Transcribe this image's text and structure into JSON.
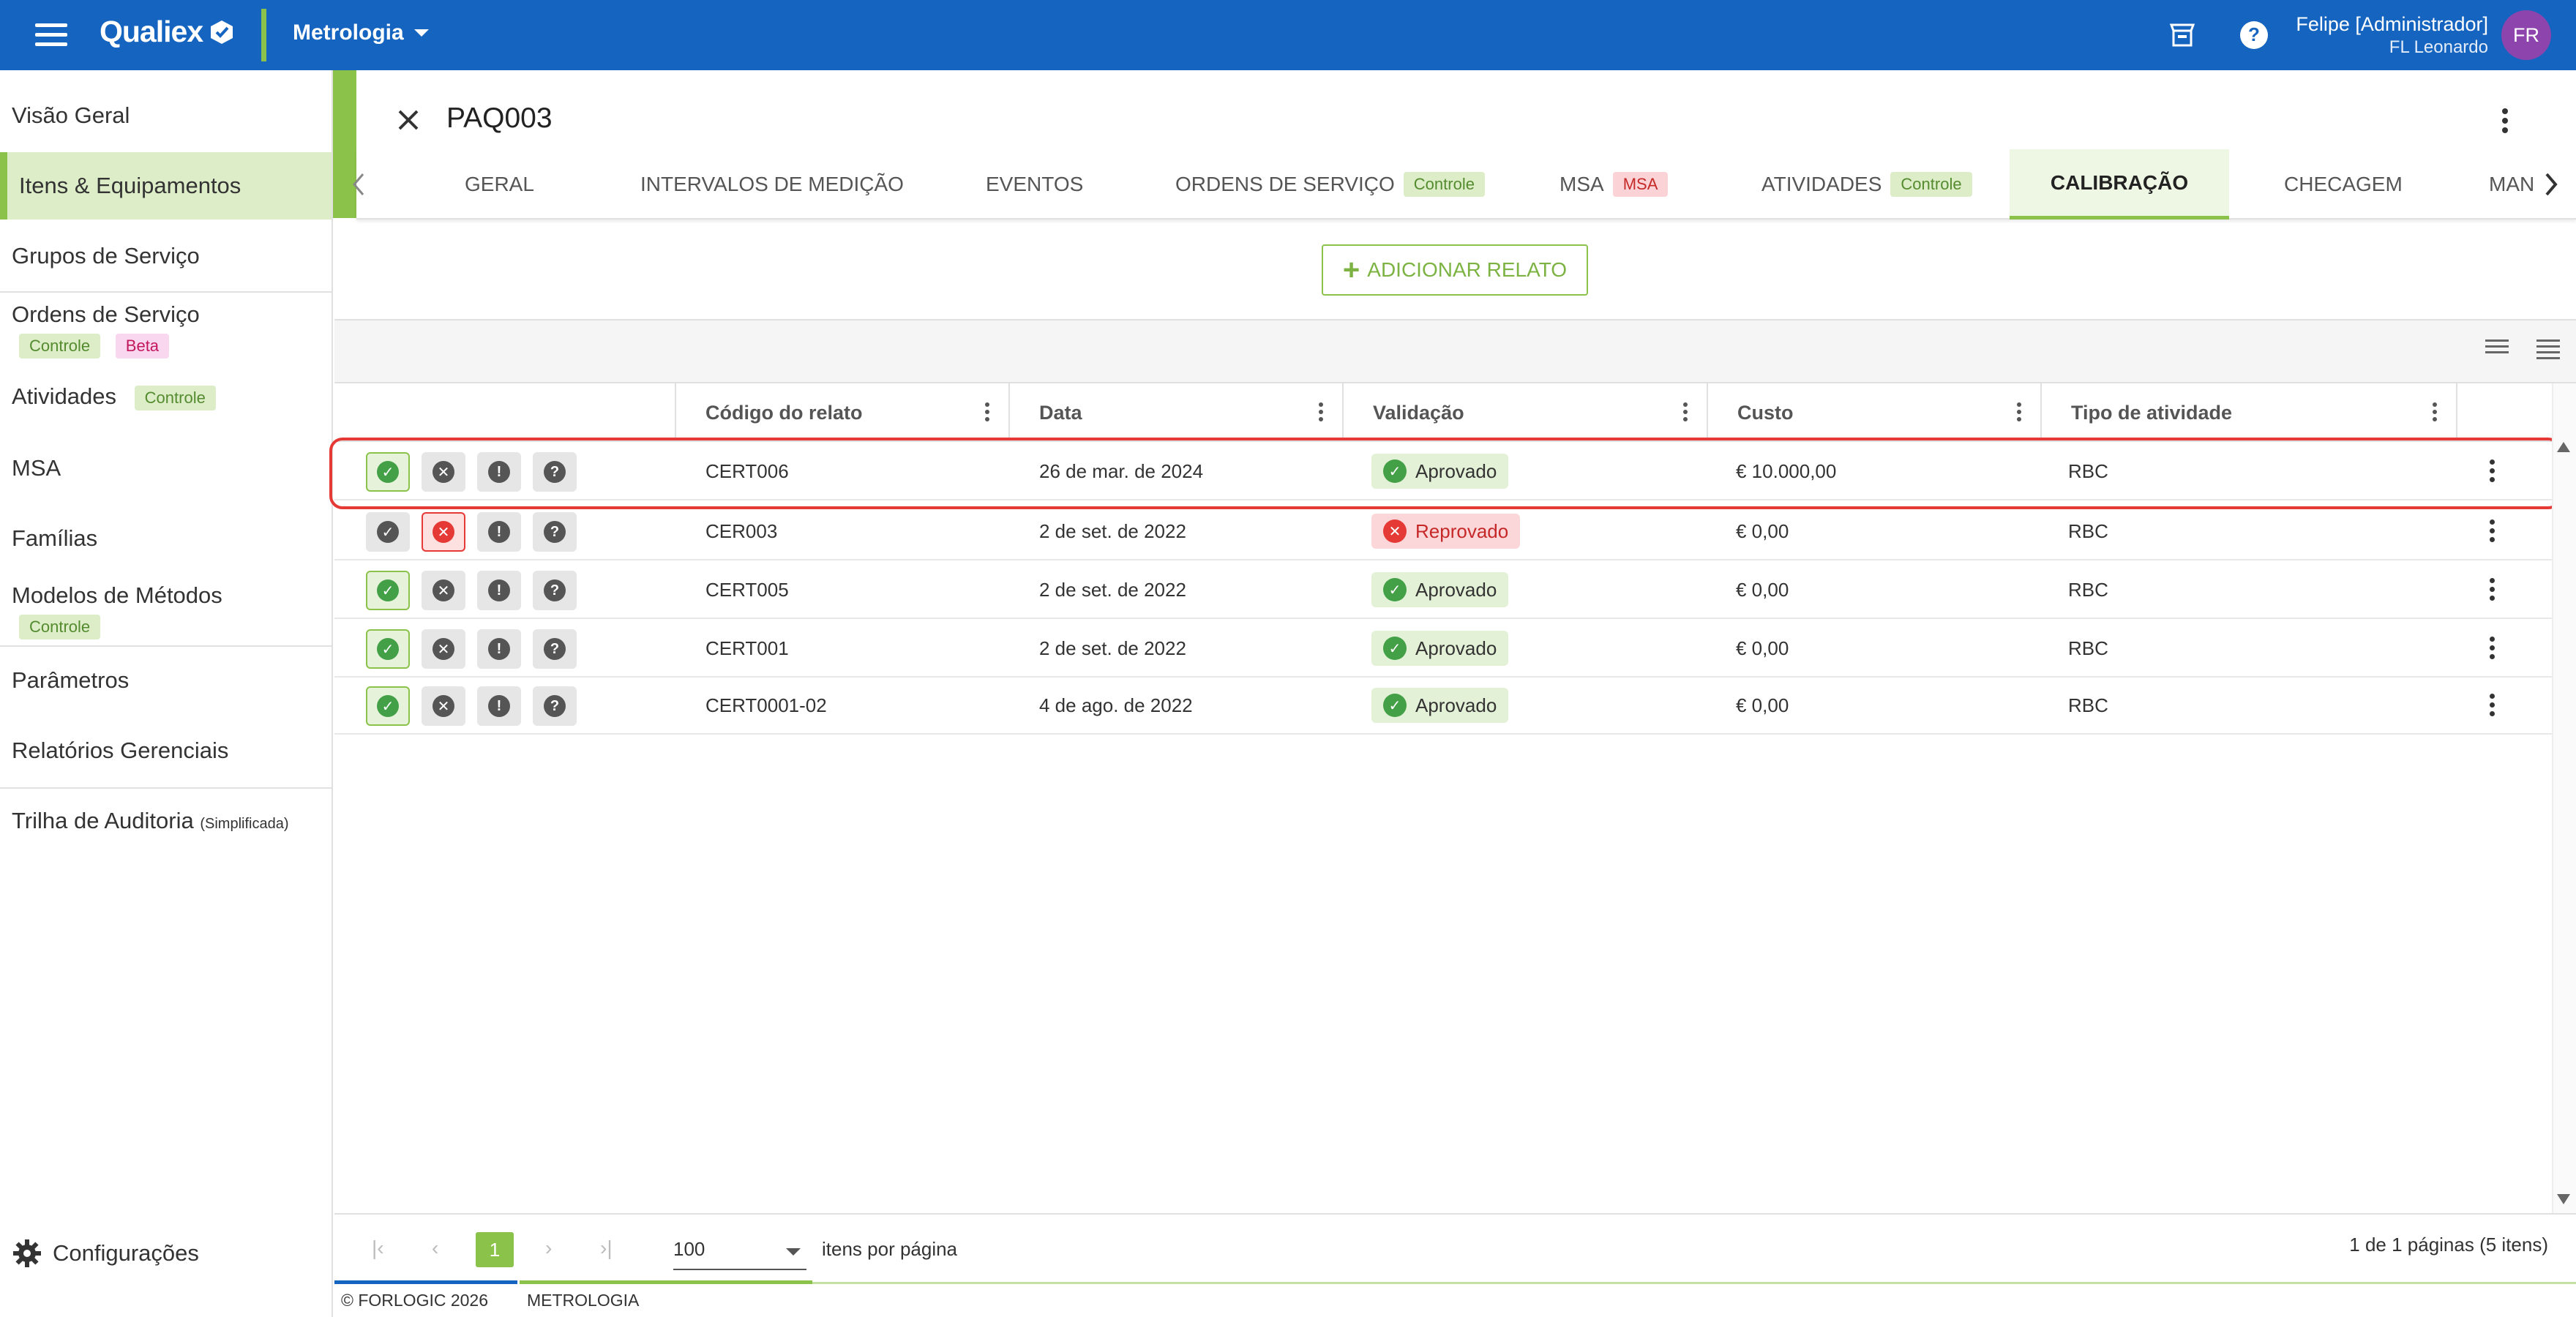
{
  "topbar": {
    "logo": "Qualiex",
    "module": "Metrologia",
    "user_name": "Felipe [Administrador]",
    "user_sub": "FL Leonardo",
    "avatar_initials": "FR",
    "icons": [
      "menu-icon",
      "store-icon",
      "help-icon"
    ]
  },
  "sidebar": {
    "items": [
      {
        "label": "Visão Geral"
      },
      {
        "label": "Itens & Equipamentos",
        "active": true
      },
      {
        "label": "Grupos de Serviço"
      },
      {
        "label": "Ordens de Serviço",
        "chips": [
          "Controle",
          "Beta"
        ]
      },
      {
        "label": "Atividades",
        "chips": [
          "Controle"
        ]
      },
      {
        "label": "MSA"
      },
      {
        "label": "Famílias"
      },
      {
        "label": "Modelos de Métodos",
        "chips": [
          "Controle"
        ]
      },
      {
        "label": "Parâmetros"
      },
      {
        "label": "Relatórios Gerenciais"
      },
      {
        "label": "Trilha de Auditoria",
        "note": "(Simplificada)"
      }
    ],
    "settings": "Configurações"
  },
  "detail": {
    "title": "PAQ003",
    "tabs": [
      {
        "label": "GERAL"
      },
      {
        "label": "INTERVALOS DE MEDIÇÃO"
      },
      {
        "label": "EVENTOS"
      },
      {
        "label": "ORDENS DE SERVIÇO",
        "chip": "Controle"
      },
      {
        "label": "MSA",
        "chip": "MSA"
      },
      {
        "label": "ATIVIDADES",
        "chip": "Controle"
      },
      {
        "label": "CALIBRAÇÃO",
        "active": true
      },
      {
        "label": "CHECAGEM"
      },
      {
        "label": "MAN"
      }
    ],
    "add_button": "ADICIONAR RELATO"
  },
  "grid": {
    "columns": [
      "Código do relato",
      "Data",
      "Validação",
      "Custo",
      "Tipo de atividade"
    ],
    "rows": [
      {
        "code": "CERT006",
        "date": "26 de mar. de 2024",
        "validation": "Aprovado",
        "status": "ok",
        "cost": "€ 10.000,00",
        "type": "RBC",
        "active_action": "approve"
      },
      {
        "code": "CER003",
        "date": "2 de set. de 2022",
        "validation": "Reprovado",
        "status": "bad",
        "cost": "€ 0,00",
        "type": "RBC",
        "active_action": "reject"
      },
      {
        "code": "CERT005",
        "date": "2 de set. de 2022",
        "validation": "Aprovado",
        "status": "ok",
        "cost": "€ 0,00",
        "type": "RBC",
        "active_action": "approve"
      },
      {
        "code": "CERT001",
        "date": "2 de set. de 2022",
        "validation": "Aprovado",
        "status": "ok",
        "cost": "€ 0,00",
        "type": "RBC",
        "active_action": "approve"
      },
      {
        "code": "CERT0001-02",
        "date": "4 de ago. de 2022",
        "validation": "Aprovado",
        "status": "ok",
        "cost": "€ 0,00",
        "type": "RBC",
        "active_action": "approve"
      }
    ]
  },
  "pager": {
    "current_page": "1",
    "page_size": "100",
    "page_size_label": "itens por página",
    "info": "1 de 1 páginas (5 itens)"
  },
  "footer": {
    "copyright": "© FORLOGIC 2026",
    "module": "METROLOGIA"
  },
  "colors": {
    "primary": "#1565c0",
    "accent": "#8bc34a",
    "approved": "#43a047",
    "rejected": "#e53935",
    "avatar": "#8e44ad"
  }
}
